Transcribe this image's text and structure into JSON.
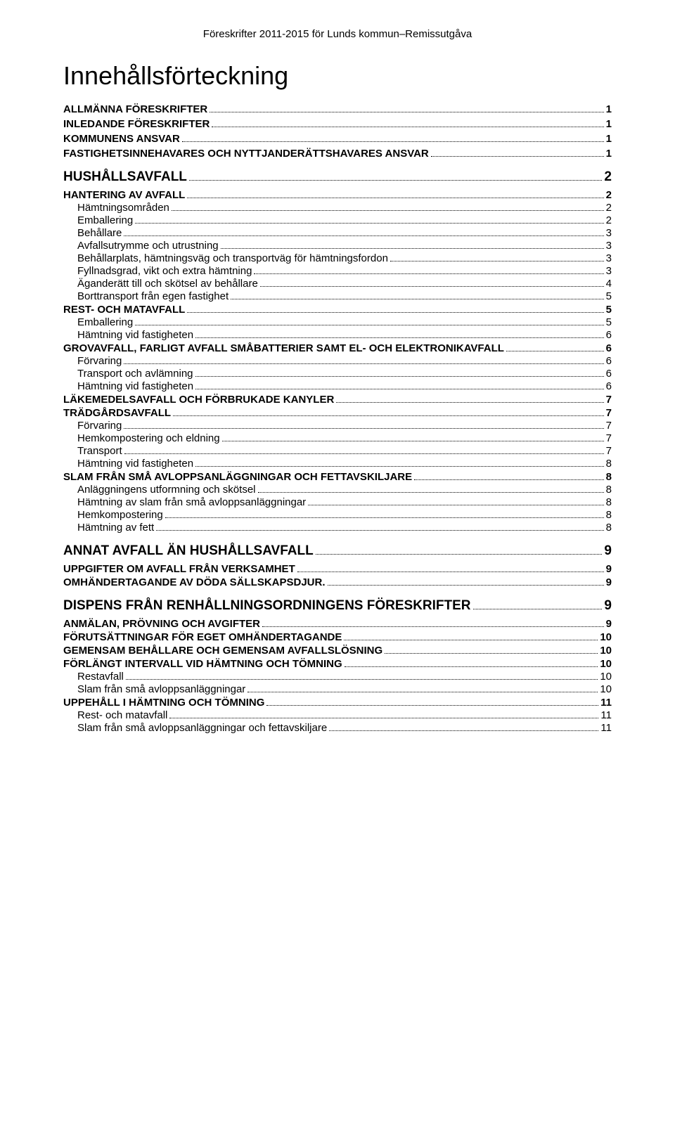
{
  "header": "Föreskrifter 2011-2015 för Lunds kommun–Remissutgåva",
  "title": "Innehållsförteckning",
  "toc": [
    {
      "level": "lvl1",
      "label": "ALLMÄNNA FÖRESKRIFTER",
      "page": "1"
    },
    {
      "level": "lvl1",
      "label": "INLEDANDE FÖRESKRIFTER",
      "page": "1"
    },
    {
      "level": "lvl1",
      "label": "KOMMUNENS ANSVAR",
      "page": "1"
    },
    {
      "level": "lvl1",
      "label": "FASTIGHETSINNEHAVARES OCH NYTTJANDERÄTTSHAVARES ANSVAR",
      "page": "1"
    },
    {
      "level": "top",
      "label": "HUSHÅLLSAVFALL",
      "page": "2"
    },
    {
      "level": "lvl25",
      "label": "HANTERING AV AVFALL",
      "page": "2"
    },
    {
      "level": "lvl3",
      "label": "Hämtningsområden",
      "page": "2"
    },
    {
      "level": "lvl3",
      "label": "Emballering",
      "page": "2"
    },
    {
      "level": "lvl3",
      "label": "Behållare",
      "page": "3"
    },
    {
      "level": "lvl3",
      "label": "Avfallsutrymme och utrustning",
      "page": "3"
    },
    {
      "level": "lvl3",
      "label": "Behållarplats, hämtningsväg och transportväg för hämtningsfordon",
      "page": "3"
    },
    {
      "level": "lvl3",
      "label": "Fyllnadsgrad, vikt och extra hämtning",
      "page": "3"
    },
    {
      "level": "lvl3",
      "label": "Äganderätt till och skötsel av behållare",
      "page": "4"
    },
    {
      "level": "lvl3",
      "label": "Borttransport från egen fastighet",
      "page": "5"
    },
    {
      "level": "lvl25",
      "label": "REST- OCH MATAVFALL",
      "page": "5"
    },
    {
      "level": "lvl3",
      "label": "Emballering",
      "page": "5"
    },
    {
      "level": "lvl3",
      "label": "Hämtning vid fastigheten",
      "page": "6"
    },
    {
      "level": "lvl25",
      "label": "GROVAVFALL, FARLIGT AVFALL SMÅBATTERIER SAMT EL- OCH ELEKTRONIKAVFALL",
      "page": "6"
    },
    {
      "level": "lvl3",
      "label": "Förvaring",
      "page": "6"
    },
    {
      "level": "lvl3",
      "label": "Transport och avlämning",
      "page": "6"
    },
    {
      "level": "lvl3",
      "label": "Hämtning vid fastigheten",
      "page": "6"
    },
    {
      "level": "lvl25",
      "label": "LÄKEMEDELSAVFALL OCH FÖRBRUKADE KANYLER",
      "page": "7"
    },
    {
      "level": "lvl25",
      "label": "TRÄDGÅRDSAVFALL",
      "page": "7"
    },
    {
      "level": "lvl3",
      "label": "Förvaring",
      "page": "7"
    },
    {
      "level": "lvl3",
      "label": "Hemkompostering och eldning",
      "page": "7"
    },
    {
      "level": "lvl3",
      "label": "Transport",
      "page": "7"
    },
    {
      "level": "lvl3",
      "label": "Hämtning vid fastigheten",
      "page": "8"
    },
    {
      "level": "lvl25",
      "label": "SLAM FRÅN SMÅ AVLOPPSANLÄGGNINGAR OCH FETTAVSKILJARE",
      "page": "8"
    },
    {
      "level": "lvl3",
      "label": "Anläggningens utformning och skötsel",
      "page": "8"
    },
    {
      "level": "lvl3",
      "label": "Hämtning av slam från små avloppsanläggningar",
      "page": "8"
    },
    {
      "level": "lvl3",
      "label": "Hemkompostering",
      "page": "8"
    },
    {
      "level": "lvl3",
      "label": "Hämtning av fett",
      "page": "8"
    },
    {
      "level": "top",
      "label": "ANNAT AVFALL ÄN HUSHÅLLSAVFALL",
      "page": "9"
    },
    {
      "level": "lvl25",
      "label": "UPPGIFTER OM AVFALL FRÅN VERKSAMHET",
      "page": "9"
    },
    {
      "level": "lvl25",
      "label": "OMHÄNDERTAGANDE AV DÖDA SÄLLSKAPSDJUR.",
      "page": "9"
    },
    {
      "level": "top",
      "label": "DISPENS FRÅN RENHÅLLNINGSORDNINGENS FÖRESKRIFTER",
      "page": "9"
    },
    {
      "level": "lvl25",
      "label": "ANMÄLAN, PRÖVNING OCH AVGIFTER",
      "page": "9"
    },
    {
      "level": "lvl25",
      "label": "FÖRUTSÄTTNINGAR FÖR EGET OMHÄNDERTAGANDE",
      "page": "10"
    },
    {
      "level": "lvl25",
      "label": "GEMENSAM BEHÅLLARE OCH GEMENSAM AVFALLSLÖSNING",
      "page": "10"
    },
    {
      "level": "lvl25",
      "label": "FÖRLÄNGT INTERVALL VID HÄMTNING OCH TÖMNING",
      "page": "10"
    },
    {
      "level": "lvl3",
      "label": "Restavfall",
      "page": "10"
    },
    {
      "level": "lvl3",
      "label": "Slam från små avloppsanläggningar",
      "page": "10"
    },
    {
      "level": "lvl25",
      "label": "UPPEHÅLL I HÄMTNING OCH TÖMNING",
      "page": "11"
    },
    {
      "level": "lvl3",
      "label": "Rest- och matavfall",
      "page": "11"
    },
    {
      "level": "lvl3",
      "label": "Slam från små avloppsanläggningar och fettavskiljare",
      "page": "11"
    }
  ]
}
